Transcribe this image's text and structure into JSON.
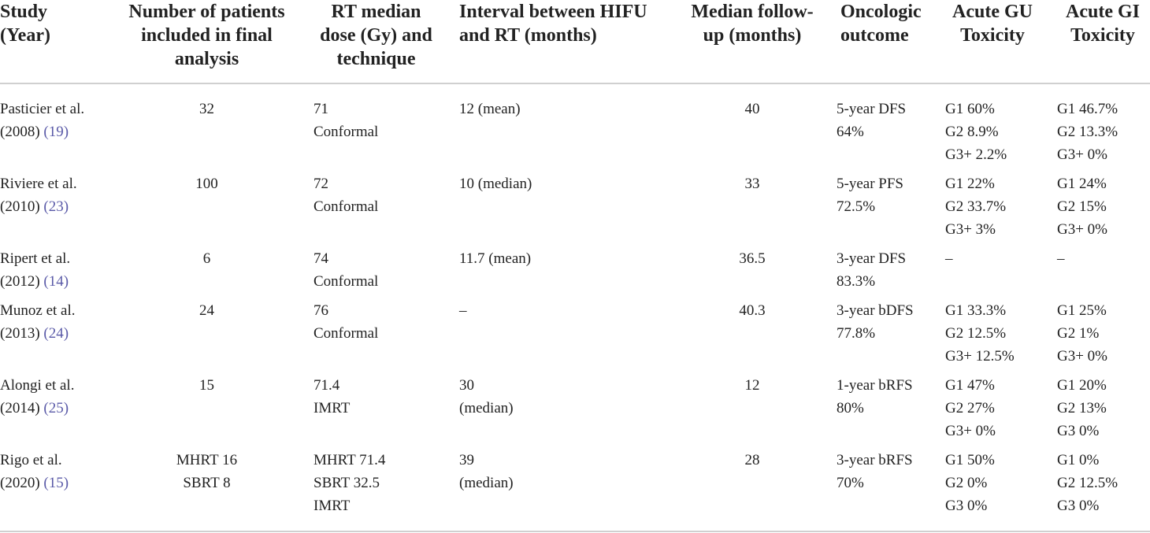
{
  "table": {
    "headers": [
      [
        "Study",
        "(Year)"
      ],
      [
        "Number of patients",
        "included in final",
        "analysis"
      ],
      [
        "RT median",
        "dose (Gy) and",
        "technique"
      ],
      [
        "Interval between HIFU",
        "and RT (months)"
      ],
      [
        "Median follow-",
        "up (months)"
      ],
      [
        "Oncologic",
        "outcome"
      ],
      [
        "Acute GU",
        "Toxicity"
      ],
      [
        "Acute GI",
        "Toxicity"
      ]
    ],
    "rows": [
      [
        {
          "name": "Pasticier et al.",
          "year": "(2008)",
          "ref": "(19)"
        },
        [
          "32"
        ],
        [
          "71",
          "Conformal"
        ],
        [
          "12 (mean)"
        ],
        [
          "40"
        ],
        [
          "5-year DFS",
          "64%"
        ],
        [
          "G1 60%",
          "G2 8.9%",
          "G3+ 2.2%"
        ],
        [
          "G1 46.7%",
          "G2 13.3%",
          "G3+ 0%"
        ]
      ],
      [
        {
          "name": "Riviere et al.",
          "year": "(2010)",
          "ref": "(23)"
        },
        [
          "100"
        ],
        [
          "72",
          "Conformal"
        ],
        [
          "10 (median)"
        ],
        [
          "33"
        ],
        [
          "5-year PFS",
          "72.5%"
        ],
        [
          "G1 22%",
          "G2 33.7%",
          "G3+ 3%"
        ],
        [
          "G1 24%",
          "G2 15%",
          "G3+ 0%"
        ]
      ],
      [
        {
          "name": "Ripert et al.",
          "year": "(2012)",
          "ref": "(14)"
        },
        [
          "6"
        ],
        [
          "74",
          "Conformal"
        ],
        [
          "11.7 (mean)"
        ],
        [
          "36.5"
        ],
        [
          "3-year DFS",
          "83.3%"
        ],
        [
          "–"
        ],
        [
          "–"
        ]
      ],
      [
        {
          "name": "Munoz et al.",
          "year": "(2013)",
          "ref": "(24)"
        },
        [
          "24"
        ],
        [
          "76",
          "Conformal"
        ],
        [
          "–"
        ],
        [
          "40.3"
        ],
        [
          "3-year bDFS",
          "77.8%"
        ],
        [
          "G1 33.3%",
          "G2 12.5%",
          "G3+ 12.5%"
        ],
        [
          "G1 25%",
          "G2 1%",
          "G3+ 0%"
        ]
      ],
      [
        {
          "name": "Alongi et al.",
          "year": "(2014)",
          "ref": "(25)"
        },
        [
          "15"
        ],
        [
          "71.4",
          "IMRT"
        ],
        [
          "30",
          "(median)"
        ],
        [
          "12"
        ],
        [
          "1-year bRFS",
          "80%"
        ],
        [
          "G1 47%",
          "G2 27%",
          "G3+ 0%"
        ],
        [
          "G1 20%",
          "G2 13%",
          "G3 0%"
        ]
      ],
      [
        {
          "name": "Rigo et al.",
          "year": "(2020)",
          "ref": "(15)"
        },
        [
          "MHRT 16",
          "SBRT 8"
        ],
        [
          "MHRT 71.4",
          "SBRT 32.5",
          "IMRT"
        ],
        [
          "39",
          "(median)"
        ],
        [
          "28"
        ],
        [
          "3-year bRFS",
          "70%"
        ],
        [
          "G1 50%",
          "G2 0%",
          "G3 0%"
        ],
        [
          "G1 0%",
          "G2 12.5%",
          "G3 0%"
        ]
      ]
    ]
  }
}
